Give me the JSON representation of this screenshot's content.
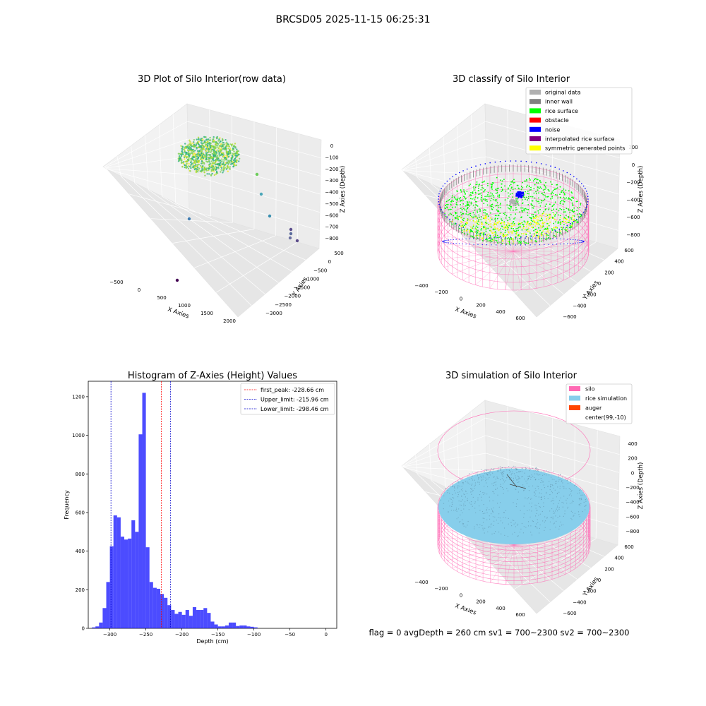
{
  "suptitle": "BRCSD05 2025-11-15 06:25:31",
  "footer": "flag = 0     avgDepth = 260 cm  sv1 = 700~2300  sv2 = 700~2300",
  "colors": {
    "original": "#b0b0b0",
    "inner_wall": "#808080",
    "rice_surface": "#00ff00",
    "obstacle": "#ff0000",
    "noise": "#0000ff",
    "interpolated": "#800080",
    "symmetric": "#ffff00",
    "silo": "#ff69b4",
    "rice_sim": "#87ceeb",
    "auger": "#ff4500",
    "hist_bar": "#0000ff"
  },
  "chart_data": [
    {
      "type": "scatter3d",
      "title": "3D Plot of Silo Interior(row data)",
      "xlabel": "X Axies",
      "ylabel": "Y Axies",
      "zlabel": "Z Axies (Depth)",
      "xticks": [
        "−500",
        "0",
        "500",
        "1000",
        "1500",
        "2000"
      ],
      "yticks": [
        "500",
        "0",
        "−500",
        "−1000",
        "−1500",
        "−2000",
        "−2500",
        "−3000"
      ],
      "zticks": [
        "0",
        "−100",
        "−200",
        "−300",
        "−400",
        "−500",
        "−600",
        "−700",
        "−800"
      ],
      "outlier_points": [
        {
          "x": 2000,
          "y": 400,
          "z": -775
        },
        {
          "x": 2000,
          "y": 350,
          "z": -735
        },
        {
          "x": 2000,
          "y": 300,
          "z": -695
        },
        {
          "x": 2100,
          "y": 300,
          "z": -795
        },
        {
          "x": 700,
          "y": 500,
          "z": -300
        },
        {
          "x": 900,
          "y": 400,
          "z": -440
        },
        {
          "x": 1100,
          "y": 300,
          "z": -600
        },
        {
          "x": -300,
          "y": -1000,
          "z": -650
        },
        {
          "x": 700,
          "y": -2500,
          "z": -800
        }
      ]
    },
    {
      "type": "scatter3d",
      "title": "3D classify of Silo Interior",
      "xlabel": "X Axies",
      "ylabel": "Y Axies",
      "zlabel": "Z Axies (Depth)",
      "xticks": [
        "−400",
        "−200",
        "0",
        "200",
        "400",
        "600"
      ],
      "yticks": [
        "600",
        "400",
        "200",
        "0",
        "−200",
        "−400",
        "−600"
      ],
      "zticks": [
        "200",
        "0",
        "−200",
        "−400",
        "−600",
        "−800"
      ],
      "legend": [
        "original data",
        "inner wall",
        "rice surface",
        "obstacle",
        "noise",
        "interpolated rice surface",
        "symmetric generated points"
      ],
      "legend_loc": "top-right"
    },
    {
      "type": "bar",
      "title": "Histogram of Z-Axies (Height) Values",
      "xlabel": "Depth (cm)",
      "ylabel": "Frequency",
      "xlim": [
        -330,
        15
      ],
      "ylim": [
        0,
        1280
      ],
      "xticks": [
        -300,
        -250,
        -200,
        -150,
        -100,
        -50,
        0
      ],
      "yticks": [
        0,
        200,
        400,
        600,
        800,
        1000,
        1200
      ],
      "bin_start": -325,
      "bin_width": 5,
      "values": [
        5,
        10,
        30,
        105,
        240,
        425,
        585,
        575,
        475,
        460,
        465,
        560,
        500,
        1005,
        1220,
        420,
        240,
        210,
        205,
        178,
        158,
        120,
        95,
        75,
        85,
        70,
        95,
        65,
        110,
        95,
        95,
        105,
        80,
        35,
        20,
        10,
        10,
        15,
        30,
        30,
        12,
        15,
        15,
        10,
        8,
        5
      ],
      "legend": [
        {
          "label": "first_peak: -228.66 cm",
          "value": -228.66,
          "color": "#ff0000"
        },
        {
          "label": "Upper_limit: -215.96 cm",
          "value": -215.96,
          "color": "#0000cc"
        },
        {
          "label": "Lower_limit: -298.46 cm",
          "value": -298.46,
          "color": "#0000cc"
        }
      ],
      "legend_loc": "top-right"
    },
    {
      "type": "surface3d",
      "title": "3D simulation of Silo Interior",
      "xlabel": "X Axies",
      "ylabel": "Y Axies",
      "zlabel": "Z Axies (Depth)",
      "xticks": [
        "−400",
        "−200",
        "0",
        "200",
        "400",
        "600"
      ],
      "yticks": [
        "600",
        "400",
        "200",
        "0",
        "−200",
        "−400",
        "−600"
      ],
      "zticks": [
        "400",
        "200",
        "0",
        "−200",
        "−400",
        "−600",
        "−800"
      ],
      "legend": [
        "silo",
        "rice simulation",
        "auger",
        "center(99,-10)"
      ],
      "legend_loc": "top-right"
    }
  ]
}
